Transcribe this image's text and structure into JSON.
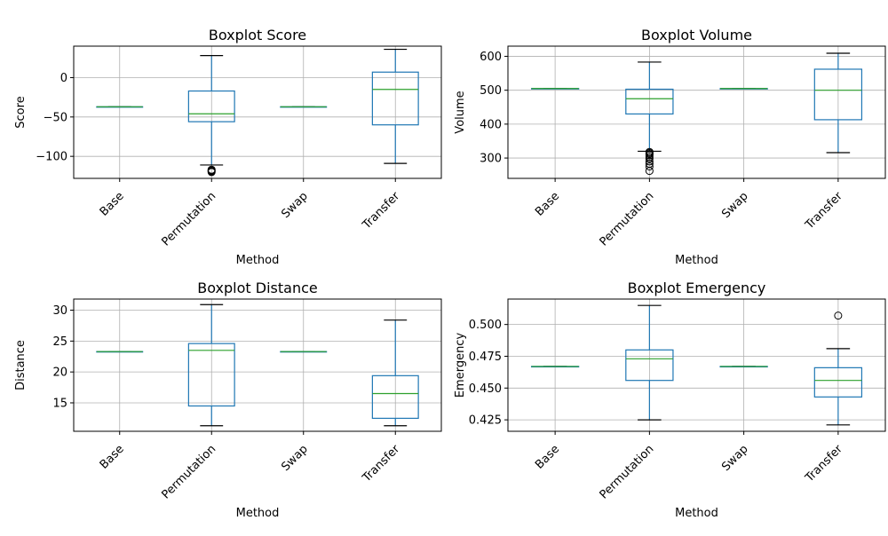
{
  "chart_data": [
    {
      "type": "boxplot",
      "title": "Boxplot Score",
      "xlabel": "Method",
      "ylabel": "Score",
      "categories": [
        "Base",
        "Permutation",
        "Swap",
        "Transfer"
      ],
      "ylim": [
        -128,
        40
      ],
      "yticks": [
        0,
        -50,
        -100
      ],
      "ytick_labels": [
        "0",
        "−50",
        "−100"
      ],
      "grid": true,
      "boxes": [
        {
          "whislo": -37,
          "q1": -37,
          "med": -37,
          "q3": -37,
          "whishi": -37,
          "fliers": []
        },
        {
          "whislo": -111,
          "q1": -56,
          "med": -46,
          "q3": -17,
          "whishi": 28,
          "fliers": [
            -117,
            -118,
            -119,
            -120
          ]
        },
        {
          "whislo": -37,
          "q1": -37,
          "med": -37,
          "q3": -37,
          "whishi": -37,
          "fliers": []
        },
        {
          "whislo": -109,
          "q1": -60,
          "med": -15,
          "q3": 7,
          "whishi": 36,
          "fliers": []
        }
      ]
    },
    {
      "type": "boxplot",
      "title": "Boxplot Volume",
      "xlabel": "Method",
      "ylabel": "Volume",
      "categories": [
        "Base",
        "Permutation",
        "Swap",
        "Transfer"
      ],
      "ylim": [
        240,
        630
      ],
      "yticks": [
        300,
        400,
        500,
        600
      ],
      "ytick_labels": [
        "300",
        "400",
        "500",
        "600"
      ],
      "grid": true,
      "boxes": [
        {
          "whislo": 505,
          "q1": 505,
          "med": 505,
          "q3": 505,
          "whishi": 505,
          "fliers": []
        },
        {
          "whislo": 320,
          "q1": 430,
          "med": 475,
          "q3": 503,
          "whishi": 583,
          "fliers": [
            318,
            315,
            312,
            308,
            303,
            298,
            290,
            283,
            275,
            262
          ]
        },
        {
          "whislo": 505,
          "q1": 505,
          "med": 505,
          "q3": 505,
          "whishi": 505,
          "fliers": []
        },
        {
          "whislo": 316,
          "q1": 413,
          "med": 500,
          "q3": 562,
          "whishi": 609,
          "fliers": []
        }
      ]
    },
    {
      "type": "boxplot",
      "title": "Boxplot Distance",
      "xlabel": "Method",
      "ylabel": "Distance",
      "categories": [
        "Base",
        "Permutation",
        "Swap",
        "Transfer"
      ],
      "ylim": [
        10.4,
        31.8
      ],
      "yticks": [
        15,
        20,
        25,
        30
      ],
      "ytick_labels": [
        "15",
        "20",
        "25",
        "30"
      ],
      "grid": true,
      "boxes": [
        {
          "whislo": 23.3,
          "q1": 23.3,
          "med": 23.3,
          "q3": 23.3,
          "whishi": 23.3,
          "fliers": []
        },
        {
          "whislo": 11.3,
          "q1": 14.5,
          "med": 23.5,
          "q3": 24.6,
          "whishi": 30.9,
          "fliers": []
        },
        {
          "whislo": 23.3,
          "q1": 23.3,
          "med": 23.3,
          "q3": 23.3,
          "whishi": 23.3,
          "fliers": []
        },
        {
          "whislo": 11.3,
          "q1": 12.5,
          "med": 16.5,
          "q3": 19.4,
          "whishi": 28.4,
          "fliers": []
        }
      ]
    },
    {
      "type": "boxplot",
      "title": "Boxplot Emergency",
      "xlabel": "Method",
      "ylabel": "Emergency",
      "categories": [
        "Base",
        "Permutation",
        "Swap",
        "Transfer"
      ],
      "ylim": [
        0.416,
        0.52
      ],
      "yticks": [
        0.425,
        0.45,
        0.475,
        0.5
      ],
      "ytick_labels": [
        "0.425",
        "0.450",
        "0.475",
        "0.500"
      ],
      "grid": true,
      "boxes": [
        {
          "whislo": 0.467,
          "q1": 0.467,
          "med": 0.467,
          "q3": 0.467,
          "whishi": 0.467,
          "fliers": []
        },
        {
          "whislo": 0.425,
          "q1": 0.456,
          "med": 0.473,
          "q3": 0.48,
          "whishi": 0.515,
          "fliers": []
        },
        {
          "whislo": 0.467,
          "q1": 0.467,
          "med": 0.467,
          "q3": 0.467,
          "whishi": 0.467,
          "fliers": []
        },
        {
          "whislo": 0.421,
          "q1": 0.443,
          "med": 0.456,
          "q3": 0.466,
          "whishi": 0.481,
          "fliers": [
            0.507
          ]
        }
      ]
    }
  ],
  "colors": {
    "box": "#1f77b4",
    "median": "#2ca02c",
    "whisker": "#000000",
    "grid": "#b0b0b0",
    "flier": "#000000"
  }
}
